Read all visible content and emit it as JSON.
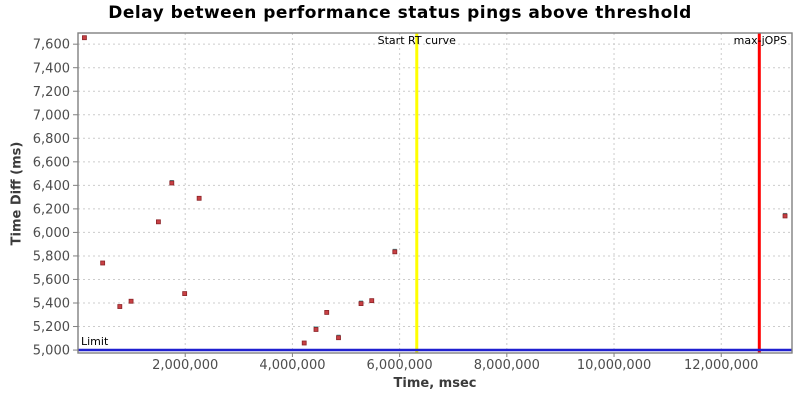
{
  "page": {
    "background": "#ffffff"
  },
  "chart_data": {
    "type": "scatter",
    "title": "Delay between performance status pings above threshold",
    "xlabel": "Time, msec",
    "ylabel": "Time Diff (ms)",
    "xlim": [
      0,
      13320000
    ],
    "ylim": [
      4975,
      7695
    ],
    "x_ticks": [
      2000000,
      4000000,
      6000000,
      8000000,
      10000000,
      12000000
    ],
    "y_ticks": [
      5000,
      5200,
      5400,
      5600,
      5800,
      6000,
      6200,
      6400,
      6600,
      6800,
      7000,
      7200,
      7400,
      7600
    ],
    "grid": true,
    "legend": "none",
    "series": [
      {
        "name": "ping-delays-above-threshold",
        "marker": "square",
        "color": "#c84044",
        "stroke": "#8b2428",
        "points": [
          {
            "x": 120000,
            "y": 7655
          },
          {
            "x": 460000,
            "y": 5740
          },
          {
            "x": 780000,
            "y": 5370
          },
          {
            "x": 990000,
            "y": 5415
          },
          {
            "x": 1500000,
            "y": 6090
          },
          {
            "x": 1750000,
            "y": 6420,
            "teal": true
          },
          {
            "x": 1990000,
            "y": 5480
          },
          {
            "x": 2260000,
            "y": 6290
          },
          {
            "x": 4220000,
            "y": 5060
          },
          {
            "x": 4440000,
            "y": 5175,
            "teal": true
          },
          {
            "x": 4640000,
            "y": 5320
          },
          {
            "x": 4860000,
            "y": 5105,
            "teal": true
          },
          {
            "x": 5280000,
            "y": 5395,
            "teal": true
          },
          {
            "x": 5480000,
            "y": 5420
          },
          {
            "x": 5910000,
            "y": 5835,
            "teal": true
          },
          {
            "x": 13190000,
            "y": 6140,
            "teal": true
          }
        ]
      }
    ],
    "annotations": {
      "limit_line": {
        "label": "Limit",
        "y": 5000,
        "color": "#2020d0"
      },
      "start_rt_line": {
        "label": "Start RT curve",
        "x": 6320000,
        "color": "#ffff00"
      },
      "max_jops_line": {
        "label": "max-jOPS",
        "x": 12710000,
        "color": "#ff0000"
      }
    },
    "colors": {
      "grid": "#cccccc",
      "plot_border": "#808080",
      "tick_label": "#4d4d4d",
      "axis_title": "#3b3b3b",
      "annotation_text": "#000000",
      "teal_accent": "#3a9b9b",
      "background": "#ffffff"
    }
  }
}
